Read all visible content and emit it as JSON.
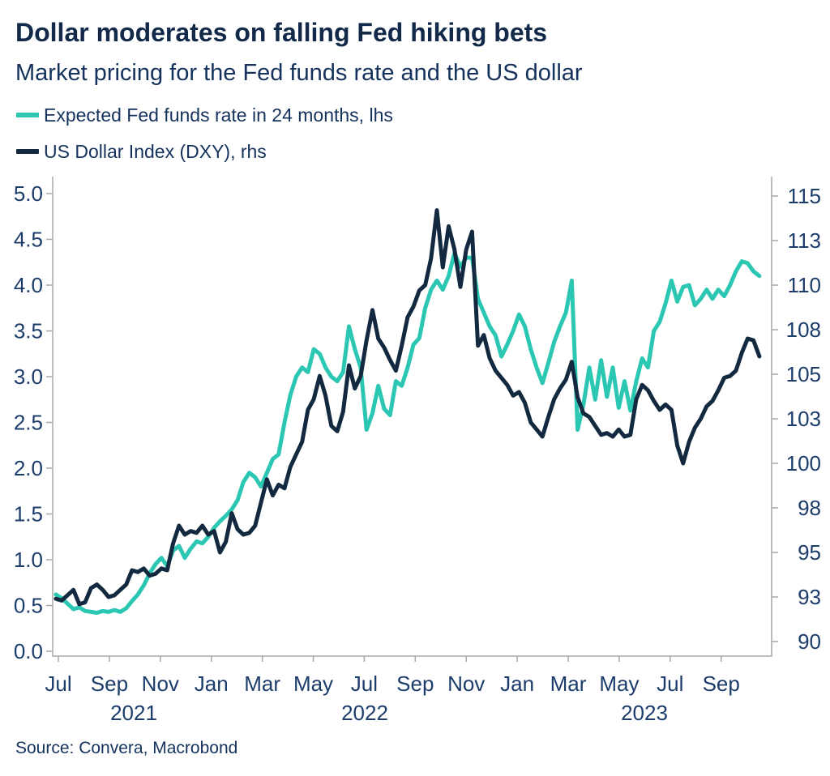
{
  "header": {
    "title": "Dollar moderates on falling Fed hiking bets",
    "subtitle": "Market pricing for the Fed funds rate and the US dollar"
  },
  "legend": [
    {
      "label": "Expected Fed funds rate in 24 months, lhs",
      "color": "#2bc7b2"
    },
    {
      "label": "US Dollar Index (DXY), rhs",
      "color": "#12293f"
    }
  ],
  "footer": {
    "source": "Source: Convera, Macrobond"
  },
  "chart_data": {
    "type": "line",
    "title": "Market pricing for the Fed funds rate and the US dollar",
    "x_axis": {
      "month_tick_labels": [
        "Jul",
        "Sep",
        "Nov",
        "Jan",
        "Mar",
        "May",
        "Jul",
        "Sep",
        "Nov",
        "Jan",
        "Mar",
        "May",
        "Jul",
        "Sep"
      ],
      "year_labels": [
        "2021",
        "2022",
        "2023"
      ],
      "start": "Jul 2021",
      "end": "Oct 2023"
    },
    "left_axis": {
      "tick_labels": [
        "0.0",
        "0.5",
        "1.0",
        "1.5",
        "2.0",
        "2.5",
        "3.0",
        "3.5",
        "4.0",
        "4.5",
        "5.0"
      ],
      "range": [
        0.0,
        5.0
      ]
    },
    "right_axis": {
      "tick_labels": [
        "90",
        "93",
        "95",
        "98",
        "100",
        "103",
        "105",
        "108",
        "110",
        "113",
        "115"
      ],
      "tick_values": [
        90,
        92.5,
        95,
        97.5,
        100,
        102.5,
        105,
        107.5,
        110,
        112.5,
        115
      ],
      "range": [
        90,
        115
      ]
    },
    "sampling": {
      "start_month_offset": -0.1,
      "month_step": 0.23,
      "note": "weekly samples, months measured from Jul 2021"
    },
    "series": [
      {
        "name": "Expected Fed funds rate in 24 months, lhs",
        "axis": "left",
        "color": "#2bc7b2",
        "values": [
          0.62,
          0.58,
          0.52,
          0.46,
          0.48,
          0.44,
          0.43,
          0.42,
          0.44,
          0.43,
          0.45,
          0.43,
          0.47,
          0.55,
          0.62,
          0.72,
          0.85,
          0.95,
          1.02,
          0.93,
          1.1,
          1.15,
          1.02,
          1.12,
          1.2,
          1.18,
          1.25,
          1.35,
          1.42,
          1.48,
          1.55,
          1.65,
          1.85,
          1.95,
          1.9,
          1.8,
          1.95,
          2.1,
          2.15,
          2.5,
          2.8,
          3.0,
          3.1,
          3.05,
          3.3,
          3.25,
          3.1,
          3.0,
          2.95,
          3.05,
          3.55,
          3.3,
          3.1,
          2.42,
          2.6,
          2.9,
          2.65,
          2.58,
          2.95,
          2.9,
          3.1,
          3.35,
          3.42,
          3.75,
          3.95,
          4.05,
          3.95,
          4.1,
          4.35,
          4.2,
          4.3,
          4.3,
          3.85,
          3.7,
          3.55,
          3.45,
          3.22,
          3.35,
          3.5,
          3.68,
          3.55,
          3.3,
          3.1,
          2.93,
          3.15,
          3.38,
          3.55,
          3.7,
          4.05,
          2.42,
          2.7,
          3.1,
          2.75,
          3.18,
          2.78,
          3.1,
          2.66,
          2.95,
          2.63,
          2.95,
          3.2,
          3.1,
          3.5,
          3.6,
          3.8,
          4.05,
          3.82,
          3.98,
          4.0,
          3.78,
          3.85,
          3.95,
          3.85,
          3.95,
          3.88,
          4.0,
          4.15,
          4.26,
          4.24,
          4.15,
          4.1
        ]
      },
      {
        "name": "US Dollar Index (DXY), rhs",
        "axis": "right",
        "color": "#12293f",
        "values": [
          92.4,
          92.3,
          92.6,
          92.9,
          92.1,
          92.2,
          93.0,
          93.2,
          92.9,
          92.5,
          92.6,
          92.9,
          93.2,
          94.0,
          93.9,
          94.1,
          93.7,
          93.8,
          94.1,
          94.0,
          95.5,
          96.5,
          96.0,
          96.2,
          96.1,
          96.5,
          96.0,
          96.2,
          95.0,
          95.6,
          97.2,
          96.3,
          96.0,
          96.1,
          96.5,
          97.8,
          99.1,
          98.2,
          98.8,
          98.6,
          99.8,
          100.5,
          101.2,
          103.0,
          103.6,
          104.9,
          103.8,
          102.1,
          101.8,
          102.9,
          105.5,
          104.2,
          104.9,
          106.9,
          108.6,
          107.0,
          106.5,
          105.8,
          105.2,
          106.6,
          108.2,
          108.8,
          109.7,
          110.0,
          111.5,
          114.2,
          111.0,
          113.3,
          112.0,
          109.9,
          112.0,
          113.0,
          106.6,
          107.2,
          105.9,
          105.2,
          104.8,
          104.4,
          103.8,
          104.0,
          103.4,
          102.3,
          101.9,
          101.5,
          102.6,
          103.6,
          104.2,
          104.7,
          105.7,
          103.7,
          102.8,
          102.6,
          102.1,
          101.6,
          101.7,
          101.5,
          101.9,
          101.5,
          101.6,
          103.6,
          104.4,
          104.1,
          103.5,
          103.0,
          103.3,
          103.0,
          101.0,
          100.0,
          101.2,
          102.0,
          102.5,
          103.2,
          103.5,
          104.1,
          104.8,
          104.9,
          105.2,
          106.2,
          107.0,
          106.9,
          106.0
        ]
      }
    ]
  }
}
